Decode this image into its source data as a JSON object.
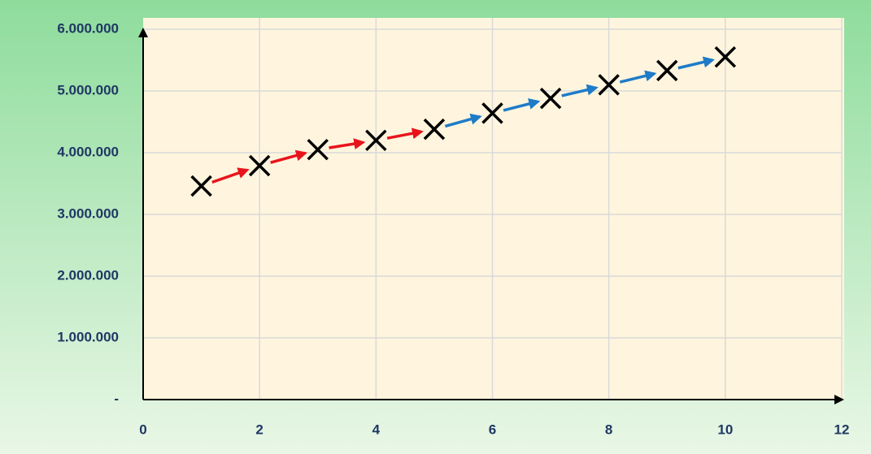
{
  "chart_data": {
    "type": "scatter",
    "x": [
      1,
      2,
      3,
      4,
      5,
      6,
      7,
      8,
      9,
      10
    ],
    "series": [
      {
        "color": "#000000",
        "values": [
          3460000,
          3790000,
          4050000,
          4200000,
          4380000,
          4640000,
          4880000,
          5100000,
          5330000,
          5550000
        ]
      }
    ],
    "arrow_colors": [
      "#e8141c",
      "#e8141c",
      "#e8141c",
      "#e8141c",
      "#1e7bc8",
      "#1e7bc8",
      "#1e7bc8",
      "#1e7bc8",
      "#1e7bc8"
    ],
    "xlim": [
      0,
      12
    ],
    "xticks": [
      0,
      2,
      4,
      6,
      8,
      10,
      12
    ],
    "ylim": [
      0,
      6000000
    ],
    "yticks": [
      {
        "value": 0,
        "label": "-"
      },
      {
        "value": 1000000,
        "label": "1.000.000"
      },
      {
        "value": 2000000,
        "label": "2.000.000"
      },
      {
        "value": 3000000,
        "label": "3.000.000"
      },
      {
        "value": 4000000,
        "label": "4.000.000"
      },
      {
        "value": 5000000,
        "label": "5.000.000"
      },
      {
        "value": 6000000,
        "label": "6.000.000"
      }
    ],
    "grid": true
  }
}
